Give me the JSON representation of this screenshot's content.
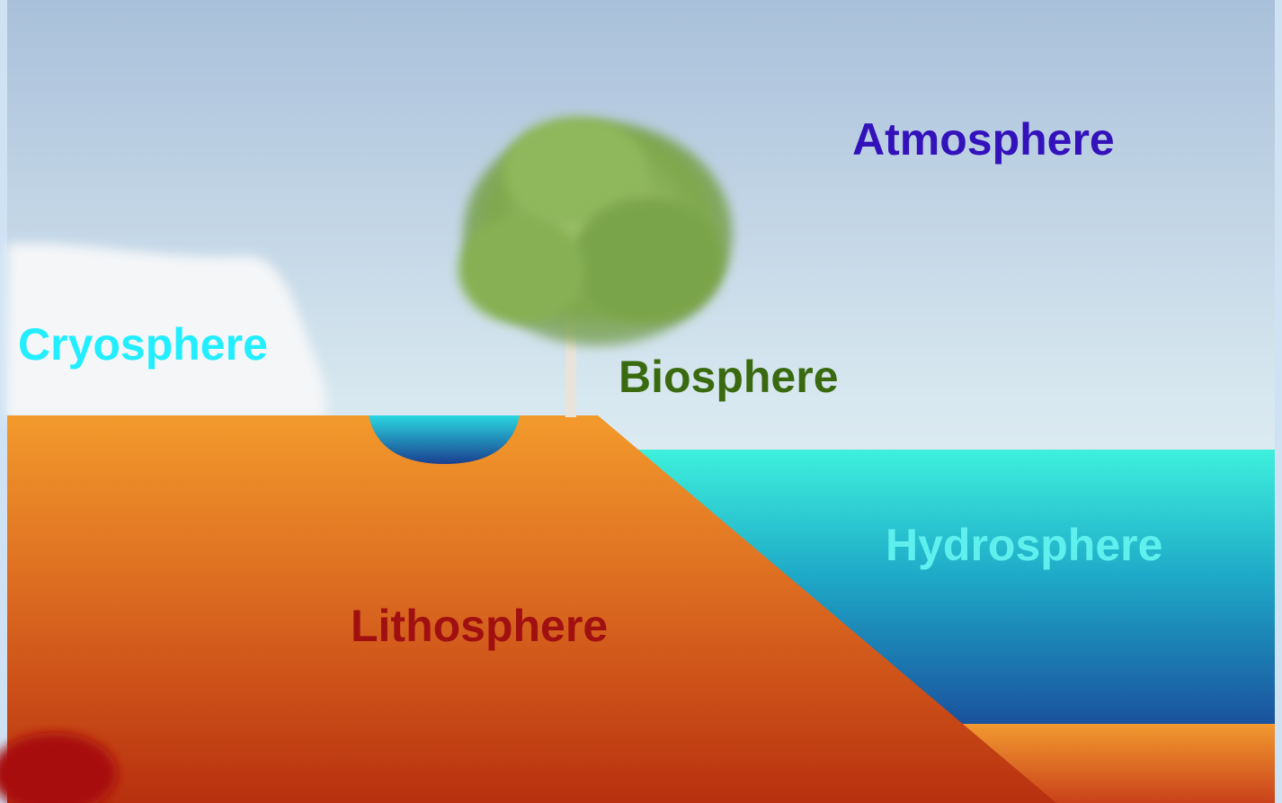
{
  "labels": {
    "atmosphere": "Atmosphere",
    "cryosphere": "Cryosphere",
    "biosphere": "Biosphere",
    "hydrosphere": "Hydrosphere",
    "lithosphere": "Lithosphere"
  }
}
